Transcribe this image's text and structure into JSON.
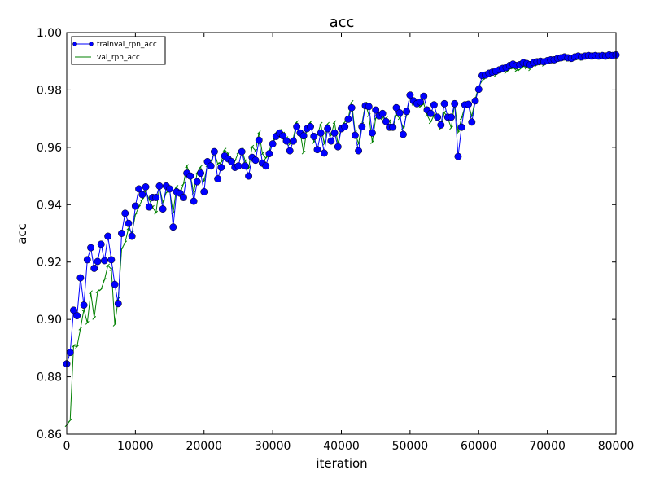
{
  "chart_data": {
    "type": "line",
    "title": "acc",
    "xlabel": "iteration",
    "ylabel": "acc",
    "xlim": [
      0,
      80000
    ],
    "ylim": [
      0.86,
      1.0
    ],
    "xticks": [
      0,
      10000,
      20000,
      30000,
      40000,
      50000,
      60000,
      70000,
      80000
    ],
    "xtick_labels": [
      "0",
      "10000",
      "20000",
      "30000",
      "40000",
      "50000",
      "60000",
      "70000",
      "80000"
    ],
    "yticks": [
      0.86,
      0.88,
      0.9,
      0.92,
      0.94,
      0.96,
      0.98,
      1.0
    ],
    "ytick_labels": [
      "0.86",
      "0.88",
      "0.90",
      "0.92",
      "0.94",
      "0.96",
      "0.98",
      "1.00"
    ],
    "grid": false,
    "legend": {
      "placement": "top-left"
    },
    "x": [
      0,
      500,
      1000,
      1500,
      2000,
      2500,
      3000,
      3500,
      4000,
      4500,
      5000,
      5500,
      6000,
      6500,
      7000,
      7500,
      8000,
      8500,
      9000,
      9500,
      10000,
      10500,
      11000,
      11500,
      12000,
      12500,
      13000,
      13500,
      14000,
      14500,
      15000,
      15500,
      16000,
      16500,
      17000,
      17500,
      18000,
      18500,
      19000,
      19500,
      20000,
      20500,
      21000,
      21500,
      22000,
      22500,
      23000,
      23500,
      24000,
      24500,
      25000,
      25500,
      26000,
      26500,
      27000,
      27500,
      28000,
      28500,
      29000,
      29500,
      30000,
      30500,
      31000,
      31500,
      32000,
      32500,
      33000,
      33500,
      34000,
      34500,
      35000,
      35500,
      36000,
      36500,
      37000,
      37500,
      38000,
      38500,
      39000,
      39500,
      40000,
      40500,
      41000,
      41500,
      42000,
      42500,
      43000,
      43500,
      44000,
      44500,
      45000,
      45500,
      46000,
      46500,
      47000,
      47500,
      48000,
      48500,
      49000,
      49500,
      50000,
      50500,
      51000,
      51500,
      52000,
      52500,
      53000,
      53500,
      54000,
      54500,
      55000,
      55500,
      56000,
      56500,
      57000,
      57500,
      58000,
      58500,
      59000,
      59500,
      60000,
      60500,
      61000,
      61500,
      62000,
      62500,
      63000,
      63500,
      64000,
      64500,
      65000,
      65500,
      66000,
      66500,
      67000,
      67500,
      68000,
      68500,
      69000,
      69500,
      70000,
      70500,
      71000,
      71500,
      72000,
      72500,
      73000,
      73500,
      74000,
      74500,
      75000,
      75500,
      76000,
      76500,
      77000,
      77500,
      78000,
      78500,
      79000,
      79500,
      80000
    ],
    "series": [
      {
        "name": "trainval_rpn_acc",
        "color": "#0000ff",
        "marker_fill": "#0000ff",
        "values": [
          0.8845,
          0.8885,
          0.9032,
          0.9013,
          0.9145,
          0.905,
          0.9208,
          0.925,
          0.9178,
          0.9202,
          0.9262,
          0.9205,
          0.929,
          0.9208,
          0.9122,
          0.9055,
          0.93,
          0.937,
          0.9335,
          0.929,
          0.9395,
          0.9455,
          0.9435,
          0.9462,
          0.9392,
          0.9425,
          0.9425,
          0.9465,
          0.9385,
          0.9465,
          0.9455,
          0.9322,
          0.9445,
          0.944,
          0.9425,
          0.951,
          0.95,
          0.9412,
          0.948,
          0.951,
          0.9445,
          0.955,
          0.9535,
          0.9585,
          0.949,
          0.953,
          0.957,
          0.956,
          0.955,
          0.953,
          0.9535,
          0.9585,
          0.9535,
          0.95,
          0.9565,
          0.9555,
          0.9625,
          0.9545,
          0.9535,
          0.9578,
          0.9612,
          0.9638,
          0.965,
          0.964,
          0.9622,
          0.9588,
          0.9622,
          0.9672,
          0.965,
          0.964,
          0.9665,
          0.9672,
          0.9638,
          0.9592,
          0.965,
          0.958,
          0.9665,
          0.9622,
          0.965,
          0.9602,
          0.9665,
          0.9672,
          0.9698,
          0.9738,
          0.9642,
          0.9588,
          0.9672,
          0.9745,
          0.9742,
          0.965,
          0.973,
          0.971,
          0.9718,
          0.969,
          0.967,
          0.967,
          0.9738,
          0.972,
          0.9645,
          0.9725,
          0.9782,
          0.9762,
          0.9752,
          0.9758,
          0.9778,
          0.973,
          0.9718,
          0.9748,
          0.9705,
          0.9678,
          0.9752,
          0.9705,
          0.9705,
          0.9752,
          0.9568,
          0.967,
          0.9748,
          0.975,
          0.9688,
          0.9762,
          0.9802,
          0.985,
          0.9852,
          0.9858,
          0.9862,
          0.9865,
          0.987,
          0.9875,
          0.9878,
          0.9885,
          0.989,
          0.9885,
          0.9888,
          0.9895,
          0.9892,
          0.9888,
          0.9895,
          0.9898,
          0.99,
          0.9898,
          0.9902,
          0.9905,
          0.9905,
          0.991,
          0.9912,
          0.9915,
          0.9912,
          0.991,
          0.9915,
          0.9918,
          0.9915,
          0.9918,
          0.992,
          0.9918,
          0.992,
          0.9918,
          0.992,
          0.9918,
          0.9922,
          0.992,
          0.9922
        ]
      },
      {
        "name": "val_rpn_acc",
        "color": "#008000",
        "values": [
          0.8632,
          0.8648,
          0.8908,
          0.8905,
          0.8968,
          0.9035,
          0.8988,
          0.9095,
          0.9005,
          0.9098,
          0.9105,
          0.9138,
          0.9188,
          0.9175,
          0.8982,
          0.9072,
          0.9245,
          0.9268,
          0.9318,
          0.9302,
          0.9365,
          0.9392,
          0.9418,
          0.9448,
          0.9418,
          0.9392,
          0.9372,
          0.9462,
          0.9408,
          0.9442,
          0.9448,
          0.9372,
          0.9462,
          0.9438,
          0.9472,
          0.9535,
          0.9502,
          0.9442,
          0.9512,
          0.9532,
          0.9482,
          0.9538,
          0.9552,
          0.9582,
          0.9542,
          0.9548,
          0.9592,
          0.9578,
          0.9548,
          0.9552,
          0.9582,
          0.9592,
          0.9552,
          0.9528,
          0.9602,
          0.9588,
          0.9652,
          0.9578,
          0.9562,
          0.9588,
          0.9622,
          0.9652,
          0.9658,
          0.9648,
          0.9632,
          0.9612,
          0.9632,
          0.9688,
          0.9652,
          0.9582,
          0.9672,
          0.9688,
          0.9618,
          0.9642,
          0.9682,
          0.9612,
          0.9682,
          0.9642,
          0.9688,
          0.9612,
          0.9672,
          0.9688,
          0.9702,
          0.9758,
          0.9652,
          0.9612,
          0.9682,
          0.9752,
          0.9712,
          0.9618,
          0.9702,
          0.9702,
          0.9702,
          0.9702,
          0.9692,
          0.9668,
          0.9712,
          0.9702,
          0.9668,
          0.9712,
          0.9788,
          0.9752,
          0.9752,
          0.9742,
          0.9752,
          0.9712,
          0.9688,
          0.9712,
          0.9702,
          0.9668,
          0.9722,
          0.9702,
          0.9668,
          0.9752,
          0.9652,
          0.9702,
          0.9742,
          0.9752,
          0.9708,
          0.9768,
          0.9812,
          0.9832,
          0.9842,
          0.9852,
          0.9858,
          0.9852,
          0.9862,
          0.9868,
          0.9862,
          0.9872,
          0.9878,
          0.9868,
          0.9872,
          0.9882,
          0.9878,
          0.9872,
          0.9885,
          0.9888,
          0.9892,
          0.9888,
          0.9895,
          0.9898,
          0.9898,
          0.9902,
          0.9905,
          0.9908,
          0.9905,
          0.9902,
          0.9908,
          0.991,
          0.9908,
          0.9912,
          0.9915,
          0.9912,
          0.9915,
          0.9912,
          0.9915,
          0.9912,
          0.9918,
          0.9915,
          0.9918
        ]
      }
    ]
  }
}
